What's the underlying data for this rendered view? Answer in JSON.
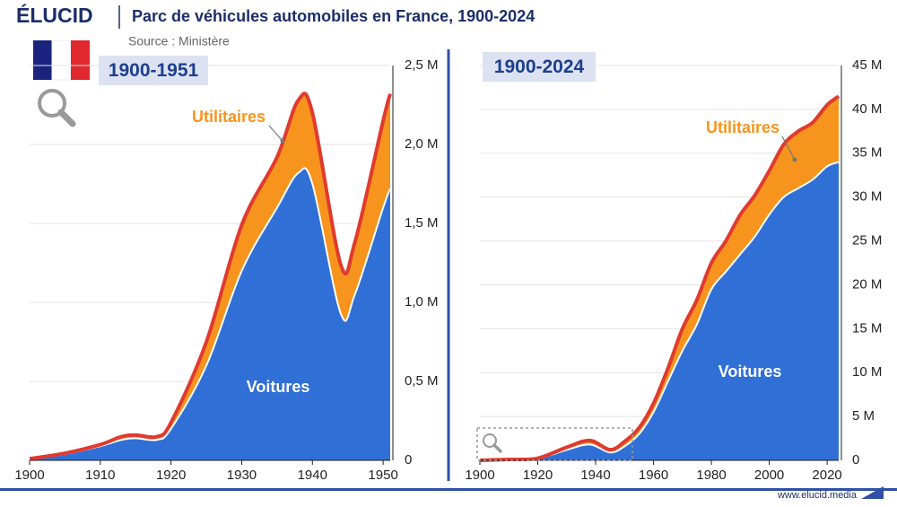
{
  "header": {
    "brand": "ÉLUCID",
    "title": "Parc de véhicules automobiles en France, 1900-2024",
    "source": "Source : Ministère"
  },
  "footer": {
    "url": "www.elucid.media"
  },
  "chart_data": [
    {
      "type": "area",
      "stacked": true,
      "title": "1900-1951",
      "x": [
        1900,
        1905,
        1910,
        1913,
        1915,
        1918,
        1920,
        1925,
        1930,
        1935,
        1938,
        1940,
        1944,
        1946,
        1950,
        1951
      ],
      "series": [
        {
          "name": "Voitures",
          "color": "#2f6fd6",
          "values": [
            0.01,
            0.04,
            0.09,
            0.13,
            0.14,
            0.13,
            0.2,
            0.6,
            1.2,
            1.6,
            1.82,
            1.75,
            0.93,
            1.05,
            1.6,
            1.72
          ]
        },
        {
          "name": "Utilitaires",
          "color": "#f7941d",
          "values": [
            0,
            0.005,
            0.01,
            0.02,
            0.02,
            0.02,
            0.04,
            0.15,
            0.29,
            0.32,
            0.46,
            0.45,
            0.31,
            0.33,
            0.55,
            0.6
          ]
        }
      ],
      "xlim": [
        1900,
        1951
      ],
      "xticks": [
        1900,
        1910,
        1920,
        1930,
        1940,
        1950
      ],
      "ylim": [
        0,
        2.5
      ],
      "yticks": [
        0,
        {
          "value": 0.5,
          "label": "0,5 M"
        },
        {
          "value": 1,
          "label": "1,0 M"
        },
        {
          "value": 1.5,
          "label": "1,5 M"
        },
        {
          "value": 2,
          "label": "2,0 M"
        },
        {
          "value": 2.5,
          "label": "2,5 M"
        }
      ],
      "grid": true,
      "line_color": "#e03a2f"
    },
    {
      "type": "area",
      "stacked": true,
      "title": "1900-2024",
      "x": [
        1900,
        1910,
        1920,
        1930,
        1938,
        1945,
        1950,
        1955,
        1960,
        1965,
        1970,
        1975,
        1980,
        1985,
        1990,
        1995,
        2000,
        2005,
        2010,
        2015,
        2020,
        2024
      ],
      "series": [
        {
          "name": "Voitures",
          "color": "#2f6fd6",
          "values": [
            0,
            0.09,
            0.2,
            1.2,
            1.8,
            0.9,
            1.6,
            3.0,
            5.5,
            9,
            12.5,
            15.5,
            19.5,
            21.5,
            23.5,
            25.5,
            28,
            30,
            31,
            32,
            33.5,
            34
          ]
        },
        {
          "name": "Utilitaires",
          "color": "#f7941d",
          "values": [
            0,
            0.01,
            0.04,
            0.29,
            0.46,
            0.31,
            0.55,
            0.7,
            1.0,
            1.5,
            2.5,
            2.8,
            3.0,
            3.5,
            4.5,
            4.7,
            5.0,
            6.0,
            6.5,
            6.5,
            7.0,
            7.5
          ]
        }
      ],
      "xlim": [
        1900,
        2024
      ],
      "xticks": [
        1900,
        1920,
        1940,
        1960,
        1980,
        2000,
        2020
      ],
      "ylim": [
        0,
        45
      ],
      "yticks": [
        0,
        {
          "value": 5,
          "label": "5 M"
        },
        {
          "value": 10,
          "label": "10 M"
        },
        {
          "value": 15,
          "label": "15 M"
        },
        {
          "value": 20,
          "label": "20 M"
        },
        {
          "value": 25,
          "label": "25 M"
        },
        {
          "value": 30,
          "label": "30 M"
        },
        {
          "value": 35,
          "label": "35 M"
        },
        {
          "value": 40,
          "label": "40 M"
        },
        {
          "value": 45,
          "label": "45 M"
        }
      ],
      "grid": true,
      "line_color": "#e03a2f"
    }
  ]
}
